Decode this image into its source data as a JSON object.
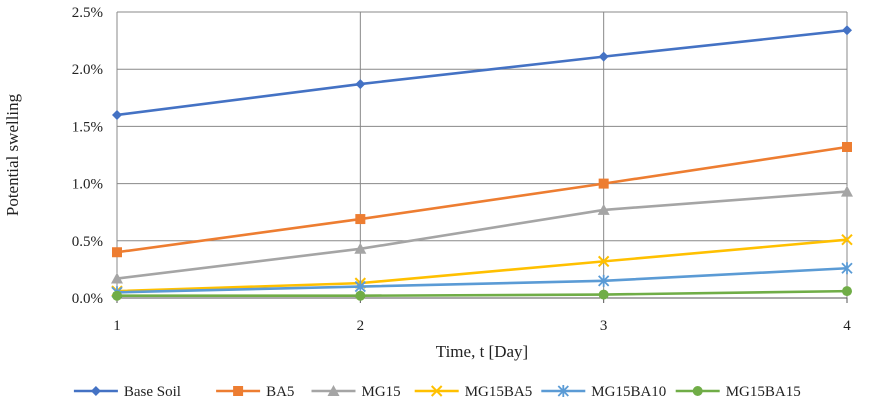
{
  "chart_data": {
    "type": "line",
    "title": "",
    "xlabel": "Time,  t [Day]",
    "ylabel": "Potential swelling",
    "x": [
      1,
      2,
      3,
      4
    ],
    "x_ticks": [
      "1",
      "2",
      "3",
      "4"
    ],
    "ylim": [
      0,
      2.5
    ],
    "y_ticks": [
      "0.0%",
      "0.5%",
      "1.0%",
      "1.5%",
      "2.0%",
      "2.5%"
    ],
    "y_unit": "%",
    "grid": true,
    "legend_position": "bottom",
    "series": [
      {
        "name": "Base Soil",
        "color": "#4472C4",
        "marker": "diamond",
        "values": [
          1.6,
          1.87,
          2.11,
          2.34
        ]
      },
      {
        "name": "BA5",
        "color": "#ED7D31",
        "marker": "square",
        "values": [
          0.4,
          0.69,
          1.0,
          1.32
        ]
      },
      {
        "name": "MG15",
        "color": "#A5A5A5",
        "marker": "triangle",
        "values": [
          0.17,
          0.43,
          0.77,
          0.93
        ]
      },
      {
        "name": "MG15BA5",
        "color": "#FFC000",
        "marker": "x",
        "values": [
          0.06,
          0.13,
          0.32,
          0.51
        ]
      },
      {
        "name": "MG15BA10",
        "color": "#5B9BD5",
        "marker": "star",
        "values": [
          0.05,
          0.1,
          0.15,
          0.26
        ]
      },
      {
        "name": "MG15BA15",
        "color": "#70AD47",
        "marker": "circle",
        "values": [
          0.02,
          0.02,
          0.03,
          0.06
        ]
      }
    ]
  }
}
